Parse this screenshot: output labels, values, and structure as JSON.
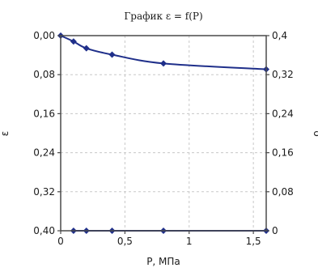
{
  "chart_data": {
    "type": "line",
    "title": "График ε = f(P)",
    "xlabel": "P, МПа",
    "ylabel_left": "ε",
    "ylabel_right": "δ",
    "x_ticks": [
      "0",
      "0,5",
      "1",
      "1,5"
    ],
    "x_tick_values": [
      0,
      0.5,
      1,
      1.5
    ],
    "xlim": [
      0,
      1.6
    ],
    "y_left_ticks": [
      "0,00",
      "0,08",
      "0,16",
      "0,24",
      "0,32",
      "0,40"
    ],
    "y_left_tick_values": [
      0,
      0.08,
      0.16,
      0.24,
      0.32,
      0.4
    ],
    "ylim_left": [
      0,
      0.4
    ],
    "y_left_inverted": true,
    "y_right_ticks": [
      "0,4",
      "0,32",
      "0,24",
      "0,16",
      "0,08",
      "0"
    ],
    "y_right_tick_values": [
      0.4,
      0.32,
      0.24,
      0.16,
      0.08,
      0
    ],
    "ylim_right": [
      0,
      0.4
    ],
    "grid": true,
    "series": [
      {
        "axis": "left",
        "color": "#1f2f8a",
        "marker": "diamond",
        "x": [
          0,
          0.1,
          0.2,
          0.4,
          0.8,
          1.6
        ],
        "y": [
          0.0,
          0.012,
          0.026,
          0.039,
          0.057,
          0.069
        ]
      },
      {
        "axis": "right",
        "color": "#1f2f8a",
        "marker": "diamond",
        "x": [
          0.1,
          0.2,
          0.4,
          0.8,
          1.6
        ],
        "y": [
          0,
          0,
          0,
          0,
          0
        ]
      }
    ]
  }
}
